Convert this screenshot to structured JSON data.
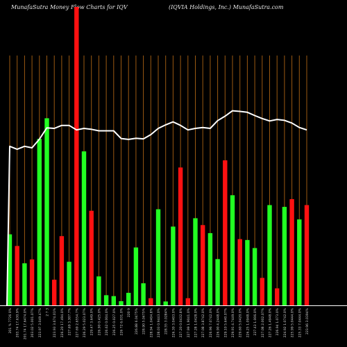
{
  "header": {
    "left": "MunafaSutra  Money Flow  Charts for IQV",
    "right": "(IQVIA Holdings,  Inc.) MunafaSutra.com"
  },
  "colors": {
    "background": "#000000",
    "vertical_grid": "#9c5a12",
    "baseline": "#ffffff",
    "up": "#22ff22",
    "down": "#ff1111",
    "flow_line": "#ffffff",
    "label_text": "#cfcfcf"
  },
  "chart_data": {
    "type": "bar",
    "title": "",
    "grid": true,
    "ylim": [
      0,
      100
    ],
    "categories": [
      "201 % 7726 0%",
      "203.74 17.630.9%",
      "201.74 17.6474.0%",
      "203.02 5.001.07%",
      "223.97 3.049.47%",
      "2 7 3",
      "223.93 3.674.01%",
      "226.20 17.494.0%",
      "227.69 3.307.7%",
      "227.69 2.6554.7%",
      "226.29 5.023.07%",
      "229.47 3.649.0%",
      "226.90 0.425.0%",
      "226.62 0.004.0%",
      "226.25 0.027.0%",
      "226 72 6.031.0%",
      "220 9",
      "226.88 6.0475%",
      "228.90 5.0475%",
      "228.94 1.0404.8%",
      "228.03 0.9443.0%",
      "228.55 3.0284%",
      "226.30 3.0403.0%",
      "227.20 0.0432.8%",
      "227.99 1.9041.0%",
      "227.28 1.0428.0%",
      "227.08 3.8742.0%",
      "226.96 7.0742.0%",
      "226.90 4.2448.0%",
      "229.10 5.640.07%",
      "229.91 4.7449.0%",
      "229.60 5.0420.0%",
      "226.25 1.0948.0%",
      "227.43 1.006.0%",
      "227.08 2.002.07%",
      "227.26 1.4948.0%",
      "226.94 1.073.0%",
      "224.92 1.0742.0%",
      "225.99 5.0444.0%",
      "225.33 7.0444.0%",
      "223.96 3.0394%"
    ],
    "bar_values": [
      23.8,
      19.9,
      14.1,
      15.4,
      55.8,
      62.7,
      8.6,
      23.2,
      14.6,
      100,
      51.6,
      31.7,
      9.7,
      3.4,
      3.1,
      1.4,
      4.2,
      19.4,
      7.4,
      2.4,
      32.2,
      1.3,
      26.4,
      46.2,
      2.4,
      29.2,
      26.9,
      24.2,
      15.5,
      48.6,
      36.9,
      22.2,
      21.9,
      19.2,
      9.2,
      33.6,
      5.7,
      33.0,
      35.6,
      28.8,
      33.6
    ],
    "bar_colors": [
      "up",
      "down",
      "up",
      "down",
      "up",
      "up",
      "down",
      "down",
      "up",
      "down",
      "up",
      "down",
      "up",
      "up",
      "up",
      "up",
      "up",
      "up",
      "up",
      "down",
      "up",
      "up",
      "up",
      "down",
      "down",
      "up",
      "down",
      "up",
      "up",
      "down",
      "up",
      "down",
      "up",
      "up",
      "down",
      "up",
      "down",
      "up",
      "down",
      "up",
      "down"
    ],
    "line_values": [
      53.3,
      52.3,
      53.3,
      52.8,
      55.7,
      59.5,
      59.3,
      60.3,
      60.3,
      58.8,
      59.3,
      59.0,
      58.5,
      58.5,
      58.5,
      55.9,
      55.6,
      56.0,
      55.8,
      57.2,
      59.3,
      60.5,
      61.5,
      60.3,
      58.8,
      59.3,
      59.6,
      59.3,
      61.9,
      63.4,
      65.2,
      65.0,
      64.7,
      63.6,
      62.6,
      61.8,
      62.3,
      62.0,
      61.1,
      59.6,
      58.8
    ]
  }
}
